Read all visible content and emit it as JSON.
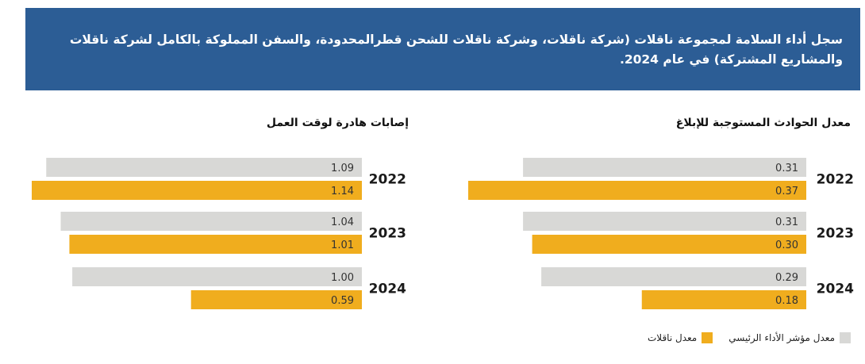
{
  "header": {
    "text": "سجل أداء السلامة لمجموعة ناقلات (شركة ناقلات، وشركة ناقلات للشحن قطرالمحدودة، والسفن المملوكة بالكامل لشركة ناقلات والمشاريع المشتركة) في عام 2024."
  },
  "colors": {
    "kpi": "#d8d8d6",
    "nakilat": "#f0ad1e",
    "header_bg": "#2c5d95"
  },
  "legend": {
    "kpi_label": "معدل مؤشر الأداء الرئيسي",
    "nakilat_label": "معدل ناقلات"
  },
  "chart_data": [
    {
      "type": "bar",
      "orientation": "horizontal",
      "title": "معدل الحوادث المستوجبة للإبلاغ",
      "categories": [
        "2022",
        "2023",
        "2024"
      ],
      "series": [
        {
          "name": "معدل مؤشر الأداء الرئيسي",
          "values": [
            0.31,
            0.31,
            0.29
          ],
          "labels": [
            "0.31",
            "0.31",
            "0.29"
          ]
        },
        {
          "name": "معدل ناقلات",
          "values": [
            0.37,
            0.3,
            0.18
          ],
          "labels": [
            "0.37",
            "0.30",
            "0.18"
          ]
        }
      ],
      "xlim": [
        0,
        0.37
      ],
      "legend": "bottom-right"
    },
    {
      "type": "bar",
      "orientation": "horizontal",
      "title": "إصابات هادرة لوقت العمل",
      "categories": [
        "2022",
        "2023",
        "2024"
      ],
      "series": [
        {
          "name": "معدل مؤشر الأداء الرئيسي",
          "values": [
            1.09,
            1.04,
            1.0
          ],
          "labels": [
            "1.09",
            "1.04",
            "1.00"
          ]
        },
        {
          "name": "معدل ناقلات",
          "values": [
            1.14,
            1.01,
            0.59
          ],
          "labels": [
            "1.14",
            "1.01",
            "0.59"
          ]
        }
      ],
      "xlim": [
        0,
        1.14
      ],
      "legend": "bottom-right"
    }
  ]
}
